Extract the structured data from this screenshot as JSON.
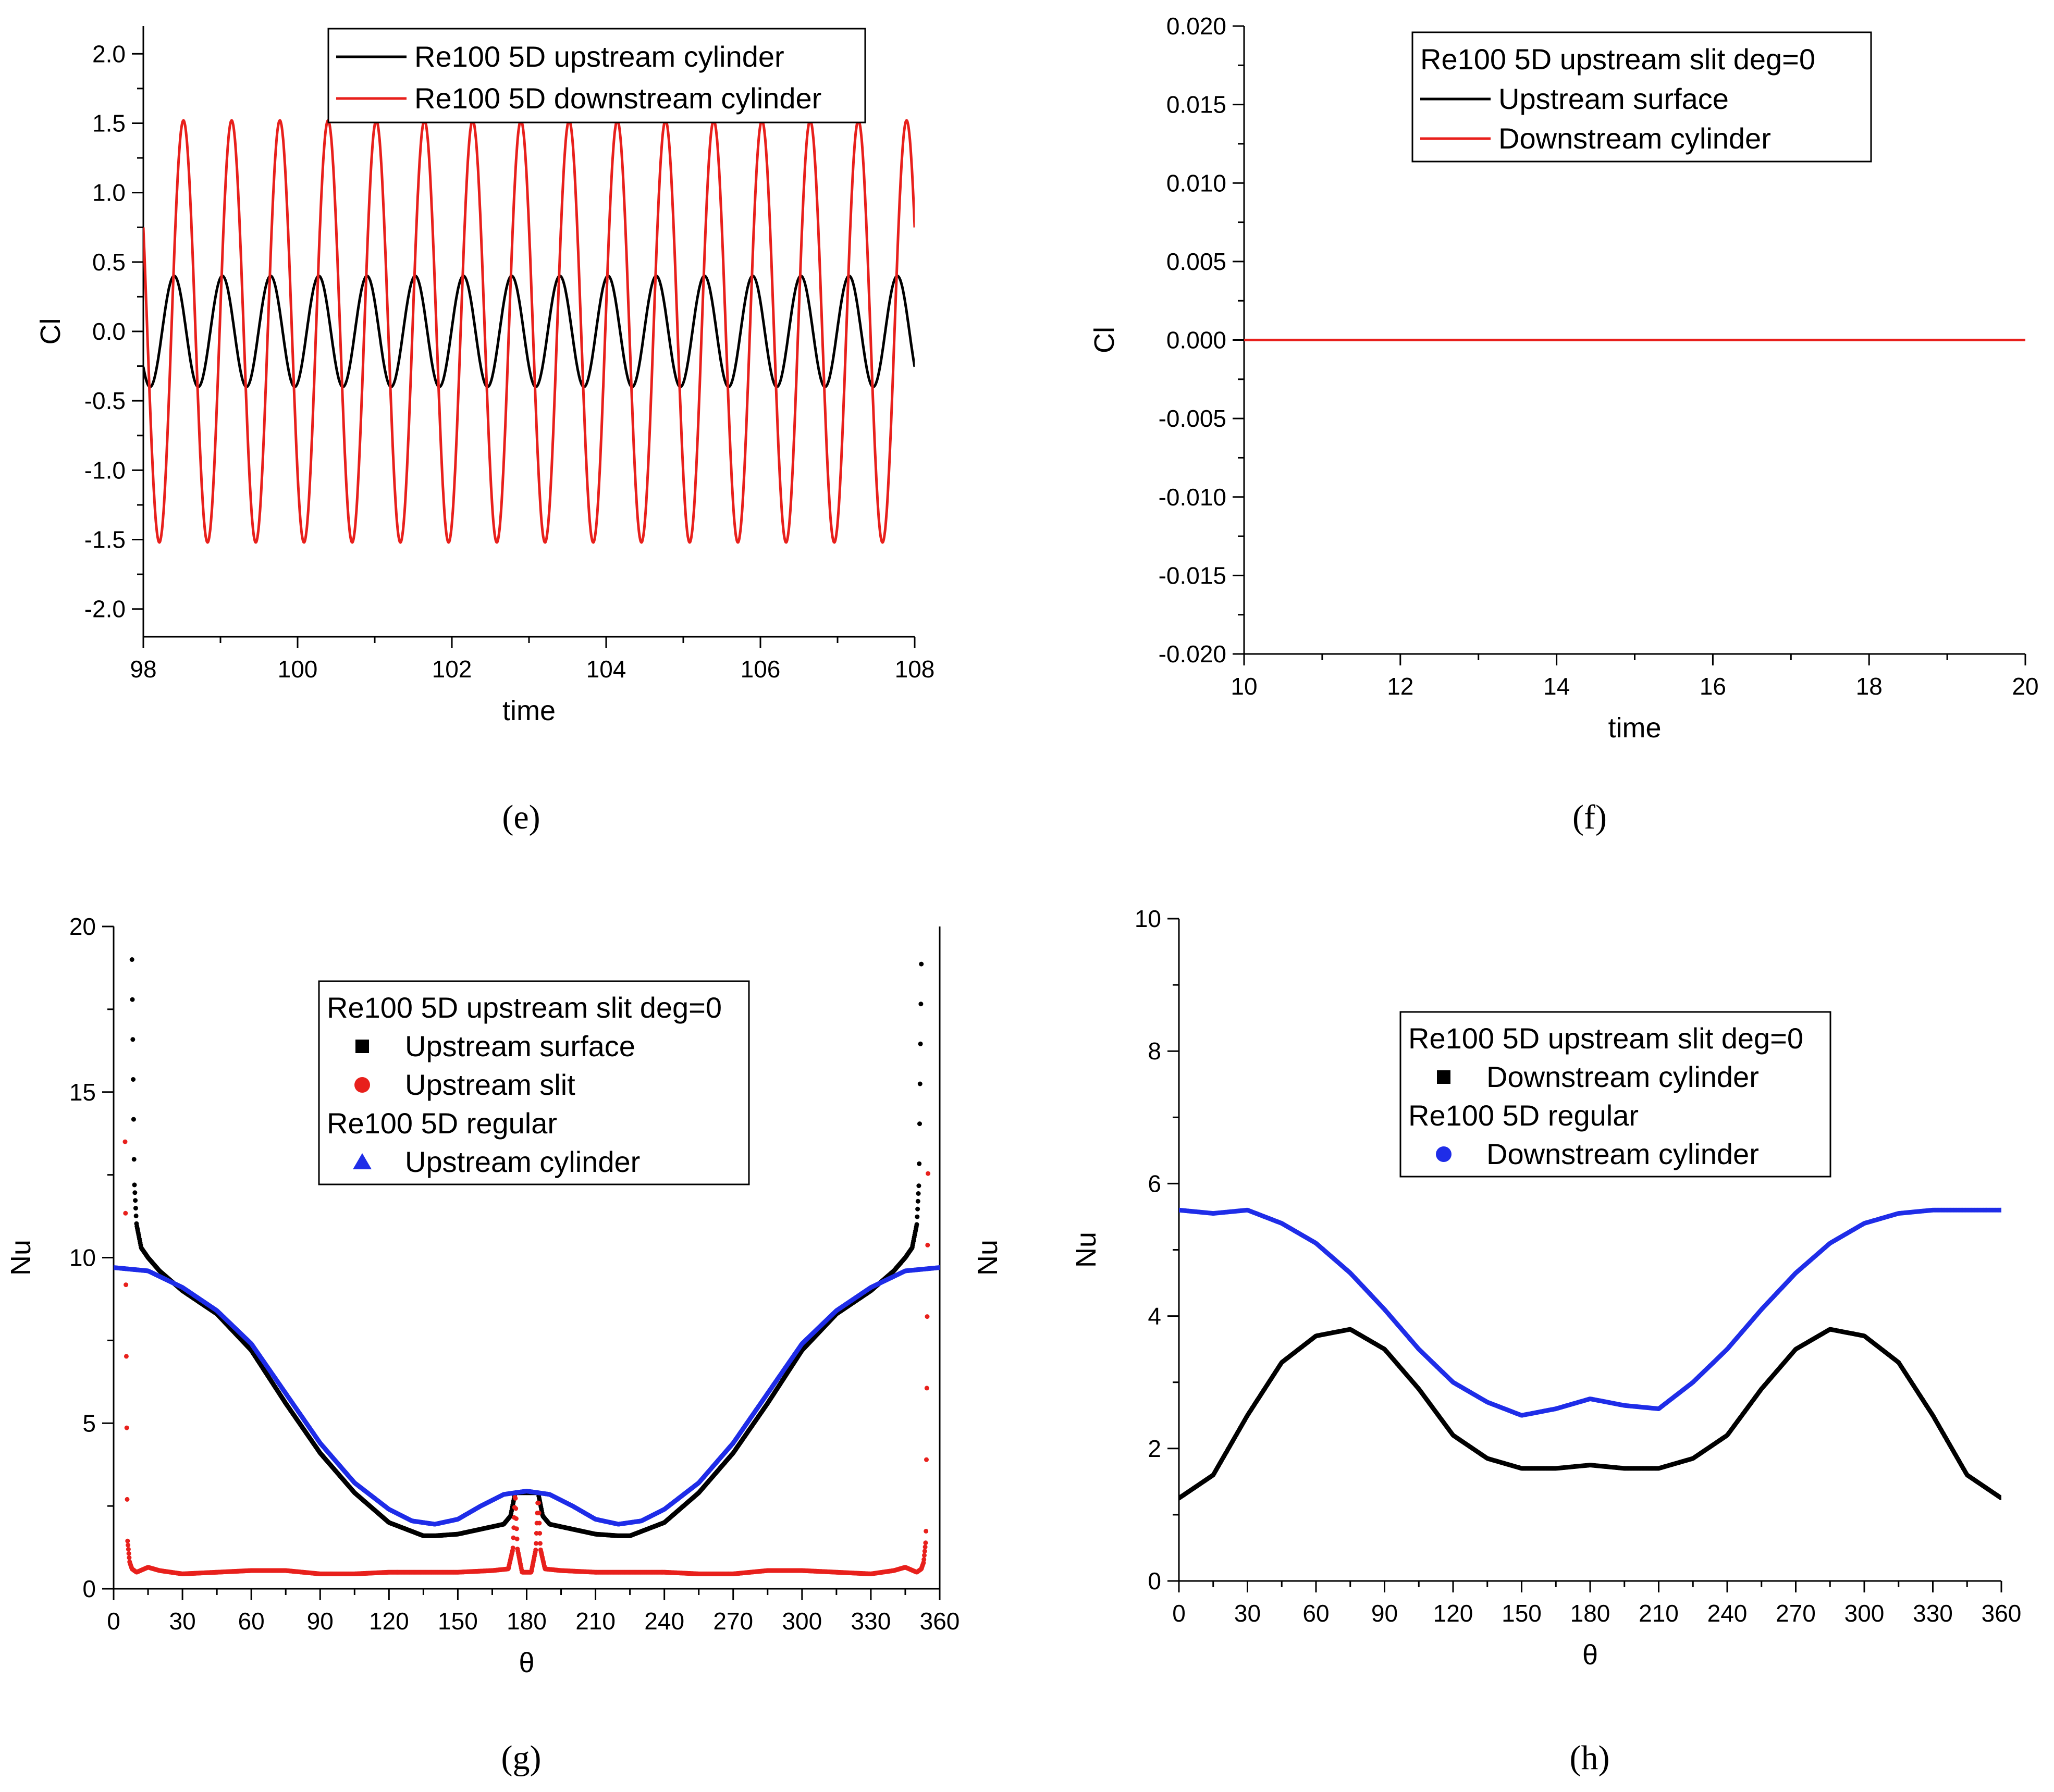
{
  "captions": [
    "(e)",
    "(f)",
    "(g)",
    "(h)"
  ],
  "chart_data": [
    {
      "id": "e",
      "type": "line",
      "xlabel": "time",
      "ylabel": "Cl",
      "xlim": [
        98,
        108
      ],
      "ylim": [
        -2.2,
        2.2
      ],
      "xticks": [
        98,
        100,
        102,
        104,
        106,
        108
      ],
      "xtick_labels": [
        "98",
        "100",
        "102",
        "104",
        "106",
        "108"
      ],
      "yticks": [
        -2.0,
        -1.5,
        -1.0,
        -0.5,
        0.0,
        0.5,
        1.0,
        1.5,
        2.0
      ],
      "ytick_labels": [
        "-2.0",
        "-1.5",
        "-1.0",
        "-0.5",
        "0.0",
        "0.5",
        "1.0",
        "1.5",
        "2.0"
      ],
      "legend": {
        "position": "top-center",
        "entries": [
          {
            "label": "Re100 5D upstream cylinder",
            "color": "#000000",
            "marker": "line"
          },
          {
            "label": "Re100 5D downstream cylinder",
            "color": "#e8201c",
            "marker": "line"
          }
        ]
      },
      "series": [
        {
          "name": "Re100 5D upstream cylinder",
          "color": "#000000",
          "model": {
            "kind": "sine",
            "amplitude": 0.4,
            "period": 0.625,
            "peak_x": 98.4
          }
        },
        {
          "name": "Re100 5D downstream cylinder",
          "color": "#e8201c",
          "model": {
            "kind": "sine",
            "amplitude": 1.52,
            "period": 0.625,
            "peak_x": 98.52
          }
        }
      ]
    },
    {
      "id": "f",
      "type": "line",
      "xlabel": "time",
      "ylabel": "Cl",
      "xlim": [
        10,
        20
      ],
      "ylim": [
        -0.02,
        0.02
      ],
      "xticks": [
        10,
        12,
        14,
        16,
        18,
        20
      ],
      "xtick_labels": [
        "10",
        "12",
        "14",
        "16",
        "18",
        "20"
      ],
      "yticks": [
        -0.02,
        -0.015,
        -0.01,
        -0.005,
        0.0,
        0.005,
        0.01,
        0.015,
        0.02
      ],
      "ytick_labels": [
        "-0.020",
        "-0.015",
        "-0.010",
        "-0.005",
        "0.000",
        "0.005",
        "0.010",
        "0.015",
        "0.020"
      ],
      "legend": {
        "position": "top-center",
        "entries": [
          {
            "label": "Re100 5D  upstream slit deg=0",
            "color": null,
            "marker": "none"
          },
          {
            "label": "Upstream surface",
            "color": "#000000",
            "marker": "line"
          },
          {
            "label": "Downstream cylinder",
            "color": "#e8201c",
            "marker": "line"
          }
        ]
      },
      "series": [
        {
          "name": "Upstream surface",
          "color": "#000000",
          "x": [
            10,
            20
          ],
          "y": [
            0.0,
            0.0
          ]
        },
        {
          "name": "Downstream cylinder",
          "color": "#e8201c",
          "x": [
            10,
            20
          ],
          "y": [
            0.0,
            0.0
          ]
        }
      ]
    },
    {
      "id": "g",
      "type": "scatter",
      "xlabel": "θ",
      "ylabel": "Nu",
      "right_ylabel": "Nu",
      "xlim": [
        0,
        360
      ],
      "ylim": [
        0,
        20
      ],
      "xticks": [
        0,
        30,
        60,
        90,
        120,
        150,
        180,
        210,
        240,
        270,
        300,
        330,
        360
      ],
      "xtick_labels": [
        "0",
        "30",
        "60",
        "90",
        "120",
        "150",
        "180",
        "210",
        "240",
        "270",
        "300",
        "330",
        "360"
      ],
      "yticks": [
        0,
        5,
        10,
        15,
        20
      ],
      "ytick_labels": [
        "0",
        "5",
        "10",
        "15",
        "20"
      ],
      "legend": {
        "position": "top-center",
        "entries": [
          {
            "label": "Re100 5D upstream slit deg=0",
            "color": null,
            "marker": "none"
          },
          {
            "label": "Upstream surface",
            "color": "#000000",
            "marker": "square"
          },
          {
            "label": "Upstream slit",
            "color": "#e8201c",
            "marker": "circle"
          },
          {
            "label": "Re100 5D regular",
            "color": null,
            "marker": "none"
          },
          {
            "label": "  Upstream cylinder",
            "color": "#1f2de8",
            "marker": "triangle"
          }
        ]
      },
      "series": [
        {
          "name": "Upstream surface",
          "color": "#000000",
          "x": [
            8,
            9,
            10,
            12,
            15,
            20,
            30,
            45,
            60,
            75,
            90,
            105,
            120,
            135,
            140,
            150,
            160,
            170,
            173,
            175,
            180,
            185,
            187,
            190,
            200,
            210,
            220,
            225,
            240,
            255,
            270,
            285,
            300,
            315,
            330,
            340,
            345,
            348,
            350,
            351,
            352
          ],
          "y": [
            19.0,
            12.3,
            11.0,
            10.3,
            10.0,
            9.6,
            9.0,
            8.3,
            7.2,
            5.6,
            4.1,
            2.9,
            2.0,
            1.6,
            1.6,
            1.65,
            1.8,
            1.95,
            2.2,
            2.9,
            2.9,
            2.9,
            2.2,
            1.95,
            1.8,
            1.65,
            1.6,
            1.6,
            2.0,
            2.9,
            4.1,
            5.6,
            7.2,
            8.3,
            9.0,
            9.6,
            10.0,
            10.3,
            11.0,
            12.3,
            19.0
          ]
        },
        {
          "name": "Upstream slit",
          "color": "#e8201c",
          "x": [
            5,
            6,
            7,
            8,
            10,
            15,
            20,
            30,
            45,
            60,
            75,
            90,
            105,
            120,
            135,
            150,
            165,
            172,
            174,
            175,
            176,
            178,
            180,
            182,
            184,
            185,
            186,
            188,
            195,
            210,
            225,
            240,
            255,
            270,
            285,
            300,
            315,
            330,
            340,
            345,
            350,
            352,
            353,
            354,
            355
          ],
          "y": [
            13.5,
            1.5,
            0.8,
            0.6,
            0.5,
            0.65,
            0.55,
            0.45,
            0.5,
            0.55,
            0.55,
            0.45,
            0.45,
            0.5,
            0.5,
            0.5,
            0.55,
            0.6,
            1.2,
            2.9,
            1.2,
            0.5,
            0.5,
            0.5,
            1.2,
            2.9,
            1.2,
            0.6,
            0.55,
            0.5,
            0.5,
            0.5,
            0.45,
            0.45,
            0.55,
            0.55,
            0.5,
            0.45,
            0.55,
            0.65,
            0.5,
            0.6,
            0.8,
            1.5,
            13.5
          ]
        },
        {
          "name": "Upstream cylinder",
          "color": "#1f2de8",
          "x": [
            0,
            15,
            30,
            45,
            60,
            75,
            90,
            105,
            120,
            130,
            140,
            150,
            160,
            170,
            180,
            190,
            200,
            210,
            220,
            230,
            240,
            255,
            270,
            285,
            300,
            315,
            330,
            345,
            360
          ],
          "y": [
            9.7,
            9.6,
            9.1,
            8.4,
            7.4,
            5.9,
            4.4,
            3.2,
            2.4,
            2.05,
            1.95,
            2.1,
            2.5,
            2.85,
            2.95,
            2.85,
            2.5,
            2.1,
            1.95,
            2.05,
            2.4,
            3.2,
            4.4,
            5.9,
            7.4,
            8.4,
            9.1,
            9.6,
            9.7
          ]
        }
      ]
    },
    {
      "id": "h",
      "type": "scatter",
      "xlabel": "θ",
      "ylabel": "Nu",
      "xlim": [
        0,
        360
      ],
      "ylim": [
        0,
        10
      ],
      "xticks": [
        0,
        30,
        60,
        90,
        120,
        150,
        180,
        210,
        240,
        270,
        300,
        330,
        360
      ],
      "xtick_labels": [
        "0",
        "30",
        "60",
        "90",
        "120",
        "150",
        "180",
        "210",
        "240",
        "270",
        "300",
        "330",
        "360"
      ],
      "yticks": [
        0,
        2,
        4,
        6,
        8,
        10
      ],
      "ytick_labels": [
        "0",
        "2",
        "4",
        "6",
        "8",
        "10"
      ],
      "legend": {
        "position": "center",
        "entries": [
          {
            "label": "Re100 5D upstream slit deg=0",
            "color": null,
            "marker": "none"
          },
          {
            "label": "Downstream cylinder",
            "color": "#000000",
            "marker": "square"
          },
          {
            "label": "Re100 5D regular",
            "color": null,
            "marker": "none"
          },
          {
            "label": "Downstream cylinder",
            "color": "#1f2de8",
            "marker": "circle"
          }
        ]
      },
      "series": [
        {
          "name": "Downstream cylinder",
          "color": "#000000",
          "x": [
            0,
            15,
            30,
            45,
            60,
            75,
            90,
            105,
            120,
            135,
            150,
            165,
            180,
            195,
            210,
            225,
            240,
            255,
            270,
            285,
            300,
            315,
            330,
            345,
            360
          ],
          "y": [
            1.25,
            1.6,
            2.5,
            3.3,
            3.7,
            3.8,
            3.5,
            2.9,
            2.2,
            1.85,
            1.7,
            1.7,
            1.75,
            1.7,
            1.7,
            1.85,
            2.2,
            2.9,
            3.5,
            3.8,
            3.7,
            3.3,
            2.5,
            1.6,
            1.25
          ]
        },
        {
          "name": "Downstream cylinder",
          "color": "#1f2de8",
          "x": [
            0,
            15,
            30,
            45,
            60,
            75,
            90,
            105,
            120,
            135,
            150,
            165,
            180,
            195,
            210,
            225,
            240,
            255,
            270,
            285,
            300,
            315,
            330,
            345,
            360
          ],
          "y": [
            5.6,
            5.55,
            5.6,
            5.4,
            5.1,
            4.65,
            4.1,
            3.5,
            3.0,
            2.7,
            2.5,
            2.6,
            2.75,
            2.65,
            2.6,
            3.0,
            3.5,
            4.1,
            4.65,
            5.1,
            5.4,
            5.55,
            5.6,
            5.6,
            5.6
          ]
        }
      ]
    }
  ]
}
